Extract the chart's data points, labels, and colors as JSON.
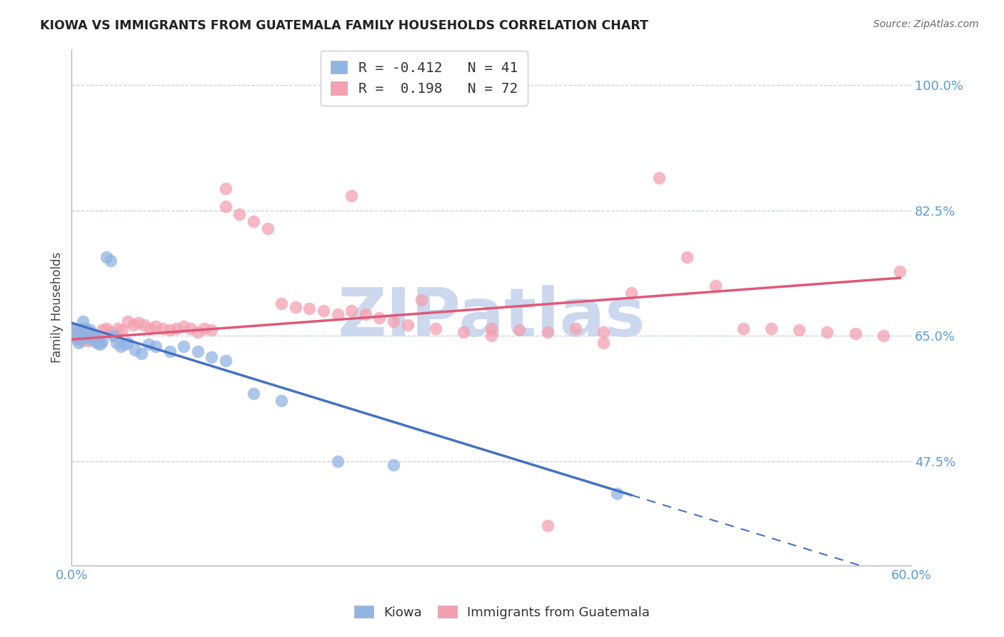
{
  "title": "KIOWA VS IMMIGRANTS FROM GUATEMALA FAMILY HOUSEHOLDS CORRELATION CHART",
  "source": "Source: ZipAtlas.com",
  "ylabel": "Family Households",
  "legend_label1": "Kiowa",
  "legend_label2": "Immigrants from Guatemala",
  "R1": -0.412,
  "N1": 41,
  "R2": 0.198,
  "N2": 72,
  "xlim": [
    0.0,
    0.6
  ],
  "ylim": [
    0.33,
    1.05
  ],
  "yticks": [
    0.475,
    0.65,
    0.825,
    1.0
  ],
  "ytick_labels": [
    "47.5%",
    "65.0%",
    "82.5%",
    "100.0%"
  ],
  "xticks": [
    0.0,
    0.1,
    0.2,
    0.3,
    0.4,
    0.5,
    0.6
  ],
  "color_kiowa": "#92b4e3",
  "color_guatemala": "#f4a0b0",
  "color_line_kiowa": "#4472c4",
  "color_line_guatemala": "#e05878",
  "watermark": "ZIPatlas",
  "watermark_color": "#ccd8ee",
  "kiowa_x": [
    0.002,
    0.003,
    0.004,
    0.005,
    0.006,
    0.007,
    0.008,
    0.009,
    0.01,
    0.011,
    0.012,
    0.013,
    0.014,
    0.015,
    0.016,
    0.017,
    0.018,
    0.019,
    0.02,
    0.022,
    0.025,
    0.028,
    0.03,
    0.032,
    0.035,
    0.038,
    0.04,
    0.045,
    0.05,
    0.055,
    0.06,
    0.07,
    0.08,
    0.09,
    0.1,
    0.11,
    0.13,
    0.15,
    0.19,
    0.23,
    0.39
  ],
  "kiowa_y": [
    0.66,
    0.65,
    0.645,
    0.64,
    0.655,
    0.66,
    0.67,
    0.65,
    0.66,
    0.648,
    0.655,
    0.658,
    0.645,
    0.65,
    0.648,
    0.643,
    0.64,
    0.645,
    0.638,
    0.642,
    0.76,
    0.755,
    0.65,
    0.64,
    0.635,
    0.638,
    0.64,
    0.63,
    0.625,
    0.638,
    0.635,
    0.628,
    0.635,
    0.628,
    0.62,
    0.615,
    0.57,
    0.56,
    0.475,
    0.47,
    0.43
  ],
  "guatemala_x": [
    0.002,
    0.003,
    0.004,
    0.005,
    0.006,
    0.007,
    0.008,
    0.009,
    0.01,
    0.012,
    0.014,
    0.016,
    0.018,
    0.02,
    0.022,
    0.025,
    0.028,
    0.03,
    0.033,
    0.036,
    0.04,
    0.044,
    0.048,
    0.052,
    0.056,
    0.06,
    0.065,
    0.07,
    0.075,
    0.08,
    0.085,
    0.09,
    0.095,
    0.1,
    0.11,
    0.12,
    0.13,
    0.14,
    0.15,
    0.16,
    0.17,
    0.18,
    0.19,
    0.2,
    0.21,
    0.22,
    0.23,
    0.24,
    0.26,
    0.28,
    0.3,
    0.32,
    0.34,
    0.36,
    0.38,
    0.4,
    0.42,
    0.44,
    0.46,
    0.48,
    0.5,
    0.52,
    0.54,
    0.56,
    0.58,
    0.592,
    0.11,
    0.2,
    0.25,
    0.3,
    0.34,
    0.38
  ],
  "guatemala_y": [
    0.66,
    0.655,
    0.65,
    0.648,
    0.645,
    0.65,
    0.643,
    0.648,
    0.655,
    0.643,
    0.65,
    0.645,
    0.648,
    0.643,
    0.658,
    0.66,
    0.655,
    0.65,
    0.66,
    0.658,
    0.67,
    0.665,
    0.668,
    0.665,
    0.66,
    0.663,
    0.66,
    0.658,
    0.66,
    0.663,
    0.66,
    0.655,
    0.66,
    0.658,
    0.83,
    0.82,
    0.81,
    0.8,
    0.695,
    0.69,
    0.688,
    0.685,
    0.68,
    0.685,
    0.68,
    0.675,
    0.67,
    0.665,
    0.66,
    0.655,
    0.66,
    0.658,
    0.655,
    0.66,
    0.655,
    0.71,
    0.87,
    0.76,
    0.72,
    0.66,
    0.66,
    0.658,
    0.655,
    0.653,
    0.65,
    0.74,
    0.855,
    0.845,
    0.7,
    0.65,
    0.385,
    0.64
  ],
  "line_kiowa_x0": 0.0,
  "line_kiowa_x_solid_end": 0.4,
  "line_kiowa_x_dash_end": 0.6,
  "line_kiowa_y0": 0.668,
  "line_kiowa_slope": -0.6,
  "line_guatemala_x0": 0.0,
  "line_guatemala_x_end": 0.592,
  "line_guatemala_y0": 0.645,
  "line_guatemala_slope": 0.145
}
